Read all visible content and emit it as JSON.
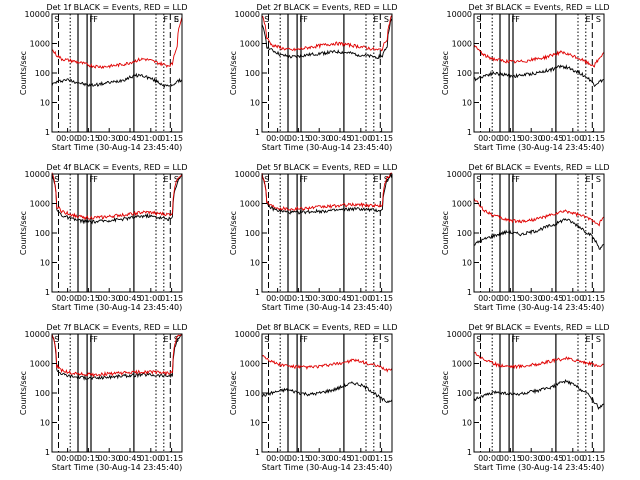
{
  "chart_data": [
    {
      "type": "line",
      "title": "Det 1f BLACK = Events, RED = LLD",
      "xlabel": "Start Time (30-Aug-14 23:45:40)",
      "ylabel": "Counts/sec",
      "y_scale": "log",
      "ylim": [
        1,
        10000
      ],
      "x_ticks": [
        "00:00",
        "00:15",
        "00:30",
        "00:45",
        "01:00",
        "01:15"
      ],
      "y_ticks": [
        "1",
        "10",
        "100",
        "1000",
        "10000"
      ],
      "markers": [
        "S",
        "F",
        "F",
        "F",
        "E",
        "S"
      ],
      "series": [
        {
          "name": "Events",
          "color": "#000000",
          "values": [
            40,
            50,
            55,
            60,
            55,
            50,
            45,
            40,
            38,
            40,
            42,
            45,
            48,
            50,
            55,
            60,
            70,
            80,
            85,
            80,
            70,
            60,
            50,
            40,
            35,
            40,
            50,
            60
          ]
        },
        {
          "name": "LLD",
          "color": "#e00000",
          "values": [
            600,
            400,
            300,
            280,
            260,
            240,
            220,
            200,
            180,
            170,
            165,
            165,
            170,
            180,
            190,
            200,
            220,
            250,
            280,
            300,
            280,
            250,
            220,
            200,
            180,
            200,
            800,
            8000
          ]
        }
      ]
    },
    {
      "type": "line",
      "title": "Det 2f BLACK = Events, RED = LLD",
      "xlabel": "Start Time (30-Aug-14 23:45:40)",
      "ylabel": "Counts/sec",
      "y_scale": "log",
      "ylim": [
        1,
        10000
      ],
      "x_ticks": [
        "00:00",
        "00:15",
        "00:30",
        "00:45",
        "01:00",
        "01:15"
      ],
      "y_ticks": [
        "1",
        "10",
        "100",
        "1000",
        "10000"
      ],
      "markers": [
        "S",
        "F",
        "F",
        "E",
        "S"
      ],
      "series": [
        {
          "name": "Events",
          "color": "#000000",
          "values": [
            4000,
            800,
            600,
            500,
            400,
            380,
            350,
            360,
            380,
            400,
            420,
            440,
            460,
            480,
            500,
            520,
            520,
            500,
            480,
            450,
            420,
            400,
            380,
            360,
            350,
            380,
            800,
            7000
          ]
        },
        {
          "name": "LLD",
          "color": "#e00000",
          "values": [
            9000,
            1500,
            900,
            800,
            700,
            650,
            600,
            620,
            650,
            700,
            750,
            800,
            850,
            900,
            950,
            1000,
            1000,
            950,
            900,
            850,
            800,
            750,
            700,
            650,
            600,
            650,
            1500,
            9000
          ]
        }
      ]
    },
    {
      "type": "line",
      "title": "Det 3f BLACK = Events, RED = LLD",
      "xlabel": "Start Time (30-Aug-14 23:45:40)",
      "ylabel": "Counts/sec",
      "y_scale": "log",
      "ylim": [
        1,
        10000
      ],
      "x_ticks": [
        "00:00",
        "00:15",
        "00:30",
        "00:45",
        "01:00",
        "01:15"
      ],
      "y_ticks": [
        "1",
        "10",
        "100",
        "1000",
        "10000"
      ],
      "markers": [
        "S",
        "F",
        "F",
        "E",
        "S"
      ],
      "series": [
        {
          "name": "Events",
          "color": "#000000",
          "values": [
            60,
            70,
            80,
            90,
            100,
            95,
            90,
            85,
            80,
            80,
            85,
            90,
            95,
            100,
            110,
            120,
            130,
            150,
            170,
            160,
            140,
            120,
            100,
            80,
            60,
            40,
            50,
            60
          ]
        },
        {
          "name": "LLD",
          "color": "#e00000",
          "values": [
            800,
            600,
            400,
            350,
            300,
            280,
            260,
            250,
            240,
            240,
            250,
            260,
            280,
            300,
            320,
            350,
            400,
            450,
            500,
            450,
            400,
            350,
            300,
            250,
            200,
            180,
            300,
            500
          ]
        }
      ]
    },
    {
      "type": "line",
      "title": "Det 4f BLACK = Events, RED = LLD",
      "xlabel": "Start Time (30-Aug-14 23:45:40)",
      "ylabel": "Counts/sec",
      "y_scale": "log",
      "ylim": [
        1,
        10000
      ],
      "x_ticks": [
        "00:00",
        "00:15",
        "00:30",
        "00:45",
        "01:00",
        "01:15"
      ],
      "y_ticks": [
        "1",
        "10",
        "100",
        "1000",
        "10000"
      ],
      "markers": [
        "S",
        "F",
        "F",
        "E",
        "S"
      ],
      "series": [
        {
          "name": "Events",
          "color": "#000000",
          "values": [
            10000,
            600,
            400,
            350,
            300,
            280,
            260,
            250,
            240,
            240,
            250,
            260,
            270,
            280,
            290,
            300,
            320,
            340,
            360,
            380,
            380,
            360,
            340,
            320,
            300,
            320,
            5000,
            10000
          ]
        },
        {
          "name": "LLD",
          "color": "#e00000",
          "values": [
            10000,
            800,
            550,
            480,
            420,
            380,
            350,
            340,
            330,
            330,
            340,
            350,
            360,
            380,
            400,
            420,
            440,
            460,
            480,
            500,
            500,
            480,
            460,
            440,
            420,
            450,
            7000,
            10000
          ]
        }
      ]
    },
    {
      "type": "line",
      "title": "Det 5f BLACK = Events, RED = LLD",
      "xlabel": "Start Time (30-Aug-14 23:45:40)",
      "ylabel": "Counts/sec",
      "y_scale": "log",
      "ylim": [
        1,
        10000
      ],
      "x_ticks": [
        "00:00",
        "00:15",
        "00:30",
        "00:45",
        "01:00",
        "01:15"
      ],
      "y_ticks": [
        "1",
        "10",
        "100",
        "1000",
        "10000"
      ],
      "markers": [
        "S",
        "F",
        "F",
        "E",
        "S"
      ],
      "series": [
        {
          "name": "Events",
          "color": "#000000",
          "values": [
            10000,
            900,
            700,
            600,
            550,
            520,
            500,
            500,
            510,
            520,
            530,
            540,
            550,
            560,
            570,
            580,
            600,
            620,
            640,
            660,
            660,
            640,
            620,
            600,
            580,
            600,
            6000,
            10000
          ]
        },
        {
          "name": "LLD",
          "color": "#e00000",
          "values": [
            10000,
            1100,
            850,
            750,
            700,
            680,
            650,
            660,
            680,
            700,
            720,
            740,
            760,
            780,
            800,
            820,
            850,
            880,
            900,
            920,
            920,
            900,
            880,
            860,
            840,
            860,
            8000,
            10000
          ]
        }
      ]
    },
    {
      "type": "line",
      "title": "Det 6f BLACK = Events, RED = LLD",
      "xlabel": "Start Time (30-Aug-14 23:45:40)",
      "ylabel": "Counts/sec",
      "y_scale": "log",
      "ylim": [
        1,
        10000
      ],
      "x_ticks": [
        "00:00",
        "00:15",
        "00:30",
        "00:45",
        "01:00",
        "01:15"
      ],
      "y_ticks": [
        "1",
        "10",
        "100",
        "1000",
        "10000"
      ],
      "markers": [
        "S",
        "F",
        "F",
        "E",
        "S"
      ],
      "series": [
        {
          "name": "Events",
          "color": "#000000",
          "values": [
            40,
            50,
            60,
            70,
            80,
            90,
            100,
            110,
            100,
            95,
            90,
            100,
            110,
            120,
            140,
            160,
            180,
            200,
            250,
            300,
            250,
            200,
            160,
            120,
            90,
            60,
            30,
            40
          ]
        },
        {
          "name": "LLD",
          "color": "#e00000",
          "values": [
            1500,
            900,
            600,
            500,
            400,
            350,
            300,
            280,
            260,
            250,
            250,
            260,
            280,
            300,
            330,
            360,
            400,
            450,
            500,
            550,
            500,
            450,
            400,
            350,
            300,
            250,
            200,
            350
          ]
        }
      ]
    },
    {
      "type": "line",
      "title": "Det 7f BLACK = Events, RED = LLD",
      "xlabel": "Start Time (30-Aug-14 23:45:40)",
      "ylabel": "Counts/sec",
      "y_scale": "log",
      "ylim": [
        1,
        10000
      ],
      "x_ticks": [
        "00:00",
        "00:15",
        "00:30",
        "00:45",
        "01:00",
        "01:15"
      ],
      "y_ticks": [
        "1",
        "10",
        "100",
        "1000",
        "10000"
      ],
      "markers": [
        "S",
        "F",
        "F",
        "E",
        "S"
      ],
      "series": [
        {
          "name": "Events",
          "color": "#000000",
          "values": [
            10000,
            600,
            450,
            400,
            370,
            350,
            340,
            330,
            320,
            320,
            330,
            340,
            350,
            360,
            370,
            380,
            390,
            400,
            410,
            420,
            420,
            410,
            400,
            390,
            380,
            400,
            6000,
            10000
          ]
        },
        {
          "name": "LLD",
          "color": "#e00000",
          "values": [
            10000,
            800,
            600,
            520,
            480,
            460,
            440,
            430,
            420,
            420,
            430,
            440,
            450,
            460,
            470,
            480,
            490,
            500,
            510,
            520,
            520,
            510,
            500,
            490,
            480,
            500,
            8000,
            10000
          ]
        }
      ]
    },
    {
      "type": "line",
      "title": "Det 8f BLACK = Events, RED = LLD",
      "xlabel": "Start Time (30-Aug-14 23:45:40)",
      "ylabel": "Counts/sec",
      "y_scale": "log",
      "ylim": [
        1,
        10000
      ],
      "x_ticks": [
        "00:00",
        "00:15",
        "00:30",
        "00:45",
        "01:00",
        "01:15"
      ],
      "y_ticks": [
        "1",
        "10",
        "100",
        "1000",
        "10000"
      ],
      "markers": [
        "S",
        "F",
        "F",
        "E",
        "S"
      ],
      "series": [
        {
          "name": "Events",
          "color": "#000000",
          "values": [
            80,
            90,
            100,
            110,
            120,
            130,
            120,
            110,
            100,
            95,
            90,
            95,
            100,
            110,
            120,
            130,
            150,
            170,
            200,
            220,
            200,
            170,
            140,
            110,
            80,
            60,
            50,
            60
          ]
        },
        {
          "name": "LLD",
          "color": "#e00000",
          "values": [
            2000,
            1500,
            1200,
            1000,
            900,
            850,
            800,
            780,
            760,
            750,
            760,
            780,
            800,
            850,
            900,
            950,
            1000,
            1100,
            1200,
            1300,
            1200,
            1100,
            1000,
            900,
            800,
            700,
            600,
            700
          ]
        }
      ]
    },
    {
      "type": "line",
      "title": "Det 9f BLACK = Events, RED = LLD",
      "xlabel": "Start Time (30-Aug-14 23:45:40)",
      "ylabel": "Counts/sec",
      "y_scale": "log",
      "ylim": [
        1,
        10000
      ],
      "x_ticks": [
        "00:00",
        "00:15",
        "00:30",
        "00:45",
        "01:00",
        "01:15"
      ],
      "y_ticks": [
        "1",
        "10",
        "100",
        "1000",
        "10000"
      ],
      "markers": [
        "S",
        "F",
        "F",
        "E",
        "S"
      ],
      "series": [
        {
          "name": "Events",
          "color": "#000000",
          "values": [
            60,
            70,
            80,
            90,
            100,
            110,
            100,
            95,
            90,
            90,
            95,
            100,
            110,
            120,
            130,
            140,
            160,
            180,
            220,
            250,
            220,
            180,
            140,
            110,
            80,
            50,
            30,
            40
          ]
        },
        {
          "name": "LLD",
          "color": "#e00000",
          "values": [
            2500,
            1800,
            1400,
            1200,
            1000,
            900,
            850,
            820,
            800,
            800,
            820,
            850,
            900,
            950,
            1000,
            1100,
            1200,
            1300,
            1400,
            1500,
            1400,
            1300,
            1200,
            1100,
            1000,
            900,
            800,
            900
          ]
        }
      ]
    }
  ]
}
